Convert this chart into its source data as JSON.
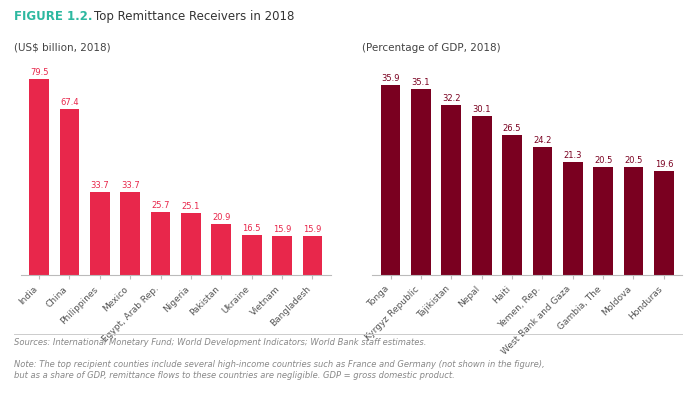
{
  "title_figure": "FIGURE 1.2.",
  "title_rest": "Top Remittance Receivers in 2018",
  "left_subtitle": "(US$ billion, 2018)",
  "right_subtitle": "(Percentage of GDP, 2018)",
  "left_categories": [
    "India",
    "China",
    "Philippines",
    "Mexico",
    "Egypt, Arab Rep.",
    "Nigeria",
    "Pakistan",
    "Ukraine",
    "Vietnam",
    "Bangladesh"
  ],
  "left_values": [
    79.5,
    67.4,
    33.7,
    33.7,
    25.7,
    25.1,
    20.9,
    16.5,
    15.9,
    15.9
  ],
  "right_categories": [
    "Tonga",
    "Kyrgyz Republic",
    "Tajikistan",
    "Nepal",
    "Haiti",
    "Yemen, Rep.",
    "West Bank and Gaza",
    "Gambia, The",
    "Moldova",
    "Honduras"
  ],
  "right_values": [
    35.9,
    35.1,
    32.2,
    30.1,
    26.5,
    24.2,
    21.3,
    20.5,
    20.5,
    19.6
  ],
  "bar_color_left": "#e8274b",
  "bar_color_right": "#7a0020",
  "value_color_left": "#e8274b",
  "value_color_right": "#7a0020",
  "source_text": "Sources: International Monetary Fund; World Development Indicators; World Bank staff estimates.",
  "note_text": "Note: The top recipient counties include several high-income countries such as France and Germany (not shown in the figure),\nbut as a share of GDP, remittance flows to these countries are negligible. GDP = gross domestic product.",
  "figure_label_color": "#2db8a0",
  "title_color": "#333333",
  "subtitle_color": "#444444",
  "tick_color": "#555555",
  "footer_color": "#888888",
  "spine_color": "#bbbbbb",
  "background_color": "#ffffff"
}
